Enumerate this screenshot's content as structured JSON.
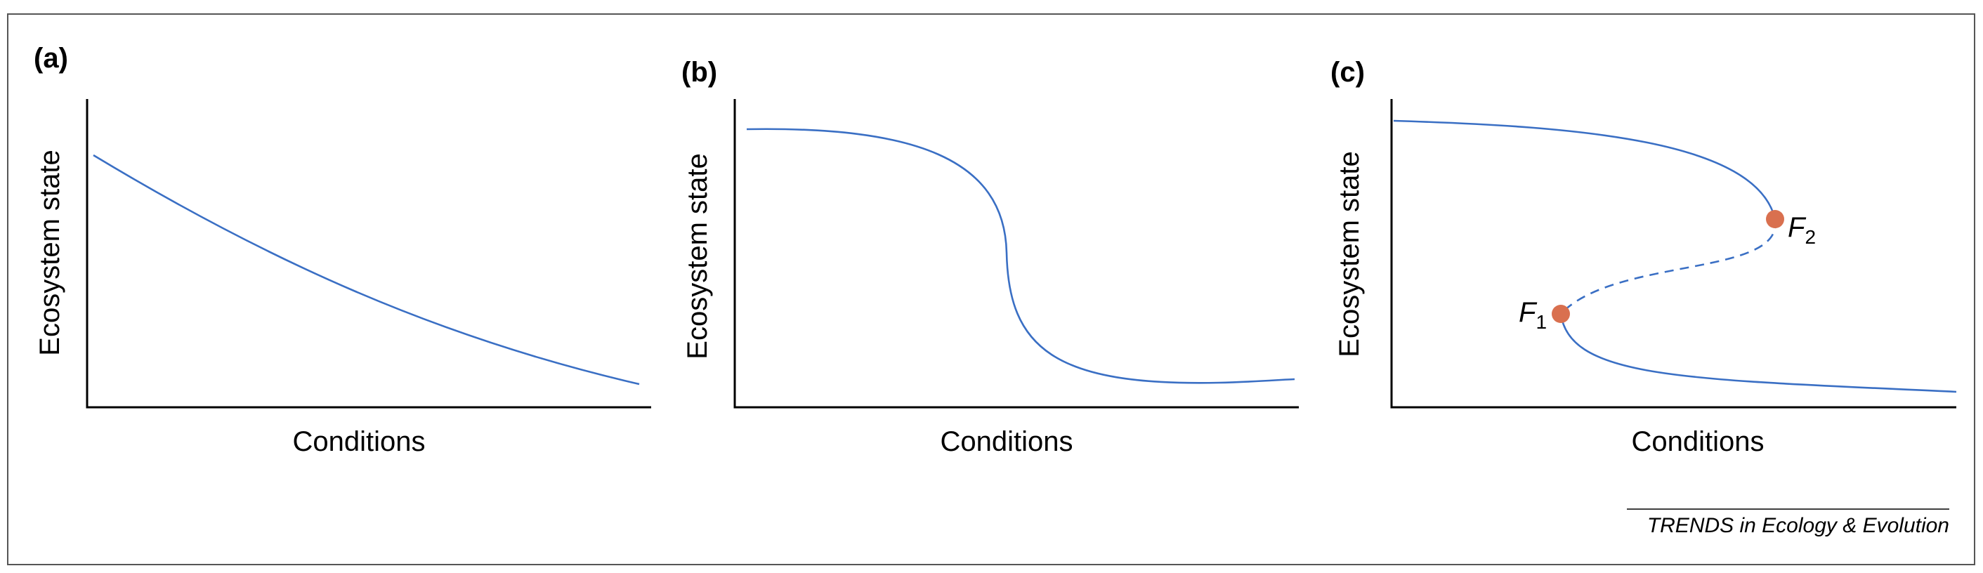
{
  "panels": [
    {
      "label": "(a)",
      "ylabel": "Ecosystem state",
      "xlabel": "Conditions"
    },
    {
      "label": "(b)",
      "ylabel": "Ecosystem state",
      "xlabel": "Conditions"
    },
    {
      "label": "(c)",
      "ylabel": "Ecosystem state",
      "xlabel": "Conditions",
      "points": [
        {
          "letter": "F",
          "sub": "1"
        },
        {
          "letter": "F",
          "sub": "2"
        }
      ]
    }
  ],
  "credit": "TRENDS in Ecology & Evolution",
  "colors": {
    "curve": "#3a6fc4",
    "fold_point": "#d9704f",
    "axes": "#000000"
  }
}
